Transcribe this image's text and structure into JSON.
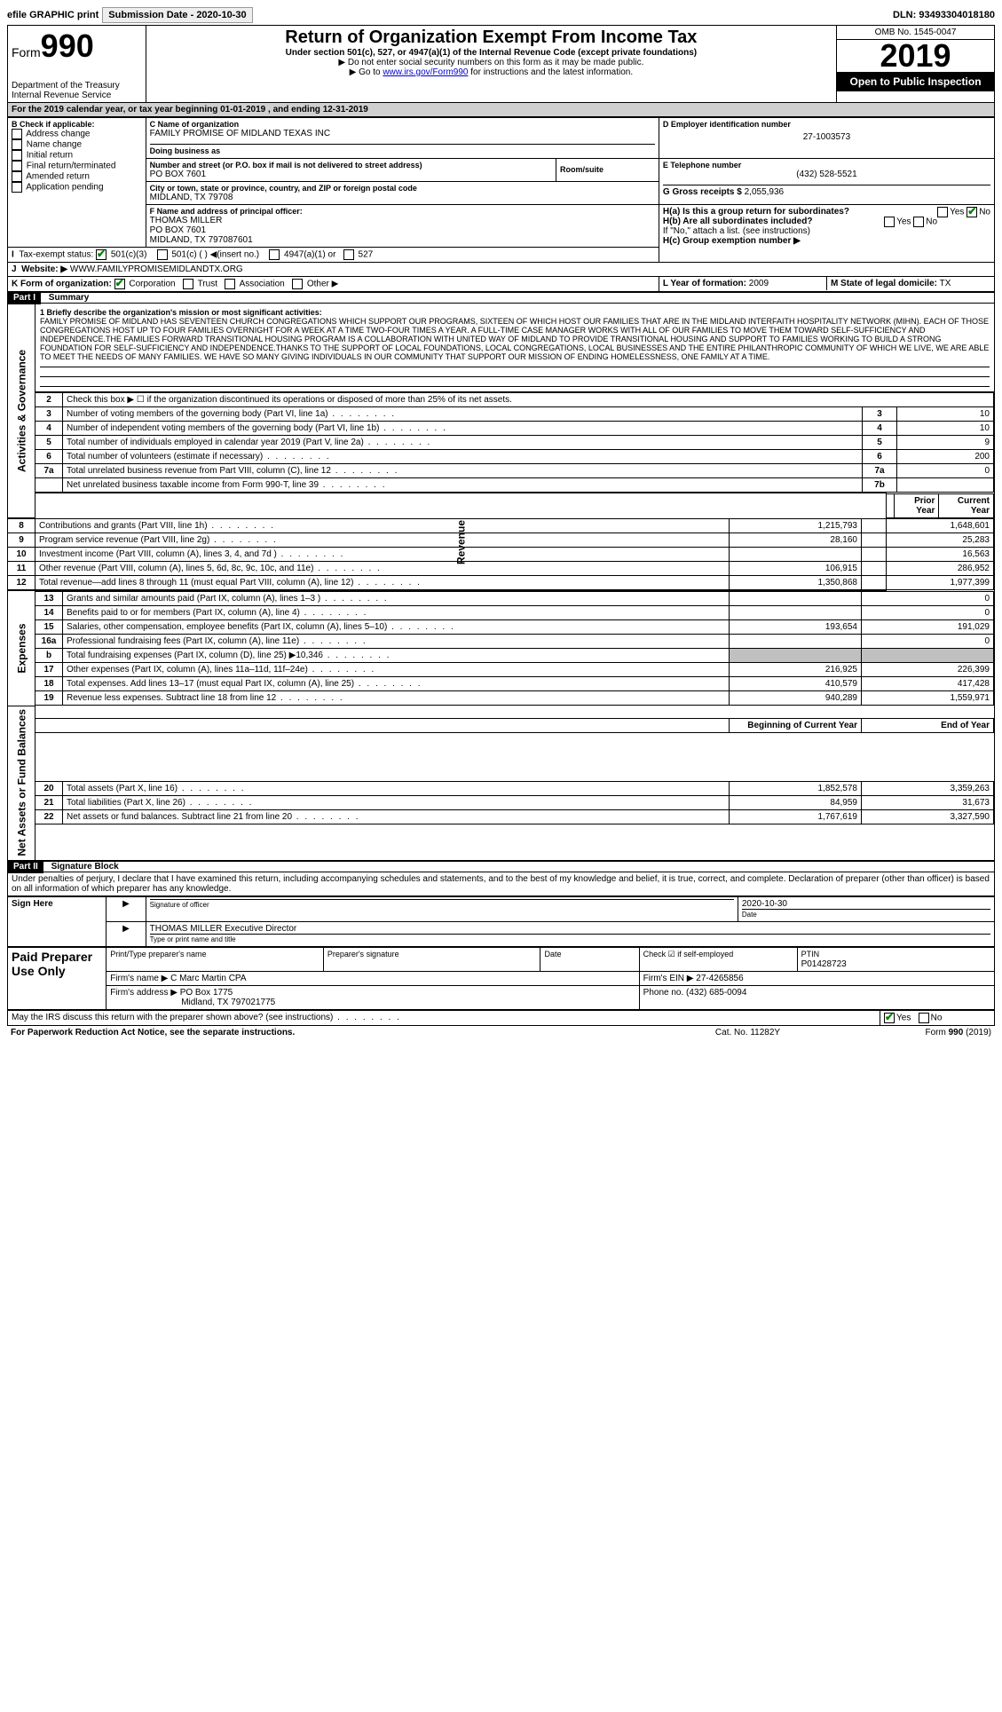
{
  "topbar": {
    "efile": "efile GRAPHIC print",
    "submission_label": "Submission Date - 2020-10-30",
    "dln": "DLN: 93493304018180"
  },
  "header": {
    "form_label": "Form",
    "form_num": "990",
    "dept": "Department of the Treasury\nInternal Revenue Service",
    "title": "Return of Organization Exempt From Income Tax",
    "subtitle": "Under section 501(c), 527, or 4947(a)(1) of the Internal Revenue Code (except private foundations)",
    "note1": "▶ Do not enter social security numbers on this form as it may be made public.",
    "note2": "▶ Go to www.irs.gov/Form990 for instructions and the latest information.",
    "omb": "OMB No. 1545-0047",
    "year": "2019",
    "open": "Open to Public Inspection"
  },
  "period": "For the 2019 calendar year, or tax year beginning 01-01-2019   , and ending 12-31-2019",
  "boxB": {
    "label": "B Check if applicable:",
    "items": [
      "Address change",
      "Name change",
      "Initial return",
      "Final return/terminated",
      "Amended return",
      "Application pending"
    ]
  },
  "boxC": {
    "name_label": "C Name of organization",
    "name": "FAMILY PROMISE OF MIDLAND TEXAS INC",
    "dba_label": "Doing business as",
    "addr_label": "Number and street (or P.O. box if mail is not delivered to street address)",
    "addr": "PO BOX 7601",
    "room_label": "Room/suite",
    "city_label": "City or town, state or province, country, and ZIP or foreign postal code",
    "city": "MIDLAND, TX  79708"
  },
  "boxD": {
    "label": "D Employer identification number",
    "val": "27-1003573"
  },
  "boxE": {
    "label": "E Telephone number",
    "val": "(432) 528-5521"
  },
  "boxG": {
    "label": "G Gross receipts $",
    "val": "2,055,936"
  },
  "boxF": {
    "label": "F  Name and address of principal officer:",
    "val": "THOMAS MILLER\nPO BOX 7601\nMIDLAND, TX  797087601"
  },
  "boxH": {
    "a": "H(a)  Is this a group return for subordinates?",
    "b": "H(b)  Are all subordinates included?",
    "bnote": "If \"No,\" attach a list. (see instructions)",
    "c": "H(c)  Group exemption number ▶"
  },
  "boxI": {
    "label": "Tax-exempt status:",
    "o1": "501(c)(3)",
    "o2": "501(c) (  ) ◀(insert no.)",
    "o3": "4947(a)(1) or",
    "o4": "527"
  },
  "boxJ": {
    "label": "Website: ▶",
    "val": "WWW.FAMILYPROMISEMIDLANDTX.ORG"
  },
  "boxK": {
    "label": "K Form of organization:",
    "o1": "Corporation",
    "o2": "Trust",
    "o3": "Association",
    "o4": "Other ▶"
  },
  "boxL": {
    "label": "L Year of formation:",
    "val": "2009"
  },
  "boxM": {
    "label": "M State of legal domicile:",
    "val": "TX"
  },
  "part1": {
    "hdr": "Part I",
    "title": "Summary"
  },
  "mission_label": "1  Briefly describe the organization's mission or most significant activities:",
  "mission": "FAMILY PROMISE OF MIDLAND HAS SEVENTEEN CHURCH CONGREGATIONS WHICH SUPPORT OUR PROGRAMS, SIXTEEN OF WHICH HOST OUR FAMILIES THAT ARE IN THE MIDLAND INTERFAITH HOSPITALITY NETWORK (MIHN). EACH OF THOSE CONGREGATIONS HOST UP TO FOUR FAMILIES OVERNIGHT FOR A WEEK AT A TIME TWO-FOUR TIMES A YEAR. A FULL-TIME CASE MANAGER WORKS WITH ALL OF OUR FAMILIES TO MOVE THEM TOWARD SELF-SUFFICIENCY AND INDEPENDENCE.THE FAMILIES FORWARD TRANSITIONAL HOUSING PROGRAM IS A COLLABORATION WITH UNITED WAY OF MIDLAND TO PROVIDE TRANSITIONAL HOUSING AND SUPPORT TO FAMILIES WORKING TO BUILD A STRONG FOUNDATION FOR SELF-SUFFICIENCY AND INDEPENDENCE.THANKS TO THE SUPPORT OF LOCAL FOUNDATIONS, LOCAL CONGREGATIONS, LOCAL BUSINESSES AND THE ENTIRE PHILANTHROPIC COMMUNITY OF WHICH WE LIVE, WE ARE ABLE TO MEET THE NEEDS OF MANY FAMILIES. WE HAVE SO MANY GIVING INDIVIDUALS IN OUR COMMUNITY THAT SUPPORT OUR MISSION OF ENDING HOMELESSNESS, ONE FAMILY AT A TIME.",
  "lines_gov": [
    {
      "n": "2",
      "t": "Check this box ▶ ☐ if the organization discontinued its operations or disposed of more than 25% of its net assets."
    },
    {
      "n": "3",
      "t": "Number of voting members of the governing body (Part VI, line 1a)",
      "box": "3",
      "v": "10"
    },
    {
      "n": "4",
      "t": "Number of independent voting members of the governing body (Part VI, line 1b)",
      "box": "4",
      "v": "10"
    },
    {
      "n": "5",
      "t": "Total number of individuals employed in calendar year 2019 (Part V, line 2a)",
      "box": "5",
      "v": "9"
    },
    {
      "n": "6",
      "t": "Total number of volunteers (estimate if necessary)",
      "box": "6",
      "v": "200"
    },
    {
      "n": "7a",
      "t": "Total unrelated business revenue from Part VIII, column (C), line 12",
      "box": "7a",
      "v": "0"
    },
    {
      "n": "",
      "t": "Net unrelated business taxable income from Form 990-T, line 39",
      "box": "7b",
      "v": ""
    }
  ],
  "col_hdr": {
    "prior": "Prior Year",
    "curr": "Current Year"
  },
  "rev": [
    {
      "n": "8",
      "t": "Contributions and grants (Part VIII, line 1h)",
      "p": "1,215,793",
      "c": "1,648,601"
    },
    {
      "n": "9",
      "t": "Program service revenue (Part VIII, line 2g)",
      "p": "28,160",
      "c": "25,283"
    },
    {
      "n": "10",
      "t": "Investment income (Part VIII, column (A), lines 3, 4, and 7d )",
      "p": "",
      "c": "16,563"
    },
    {
      "n": "11",
      "t": "Other revenue (Part VIII, column (A), lines 5, 6d, 8c, 9c, 10c, and 11e)",
      "p": "106,915",
      "c": "286,952"
    },
    {
      "n": "12",
      "t": "Total revenue—add lines 8 through 11 (must equal Part VIII, column (A), line 12)",
      "p": "1,350,868",
      "c": "1,977,399"
    }
  ],
  "exp": [
    {
      "n": "13",
      "t": "Grants and similar amounts paid (Part IX, column (A), lines 1–3 )",
      "p": "",
      "c": "0"
    },
    {
      "n": "14",
      "t": "Benefits paid to or for members (Part IX, column (A), line 4)",
      "p": "",
      "c": "0"
    },
    {
      "n": "15",
      "t": "Salaries, other compensation, employee benefits (Part IX, column (A), lines 5–10)",
      "p": "193,654",
      "c": "191,029"
    },
    {
      "n": "16a",
      "t": "Professional fundraising fees (Part IX, column (A), line 11e)",
      "p": "",
      "c": "0"
    },
    {
      "n": "b",
      "t": "Total fundraising expenses (Part IX, column (D), line 25) ▶10,346",
      "p": "SHADE",
      "c": "SHADE"
    },
    {
      "n": "17",
      "t": "Other expenses (Part IX, column (A), lines 11a–11d, 11f–24e)",
      "p": "216,925",
      "c": "226,399"
    },
    {
      "n": "18",
      "t": "Total expenses. Add lines 13–17 (must equal Part IX, column (A), line 25)",
      "p": "410,579",
      "c": "417,428"
    },
    {
      "n": "19",
      "t": "Revenue less expenses. Subtract line 18 from line 12",
      "p": "940,289",
      "c": "1,559,971"
    }
  ],
  "col_hdr2": {
    "prior": "Beginning of Current Year",
    "curr": "End of Year"
  },
  "net": [
    {
      "n": "20",
      "t": "Total assets (Part X, line 16)",
      "p": "1,852,578",
      "c": "3,359,263"
    },
    {
      "n": "21",
      "t": "Total liabilities (Part X, line 26)",
      "p": "84,959",
      "c": "31,673"
    },
    {
      "n": "22",
      "t": "Net assets or fund balances. Subtract line 21 from line 20",
      "p": "1,767,619",
      "c": "3,327,590"
    }
  ],
  "part2": {
    "hdr": "Part II",
    "title": "Signature Block"
  },
  "penalty": "Under penalties of perjury, I declare that I have examined this return, including accompanying schedules and statements, and to the best of my knowledge and belief, it is true, correct, and complete. Declaration of preparer (other than officer) is based on all information of which preparer has any knowledge.",
  "sign": {
    "here": "Sign Here",
    "sig_label": "Signature of officer",
    "date": "2020-10-30",
    "date_label": "Date",
    "name": "THOMAS MILLER  Executive Director",
    "name_label": "Type or print name and title"
  },
  "paid": {
    "here": "Paid Preparer Use Only",
    "c1": "Print/Type preparer's name",
    "c2": "Preparer's signature",
    "c3": "Date",
    "c4": "Check ☑ if self-employed",
    "c5": "PTIN",
    "ptin": "P01428723",
    "firm_name_label": "Firm's name     ▶",
    "firm_name": "C Marc Martin CPA",
    "firm_ein_label": "Firm's EIN ▶",
    "firm_ein": "27-4265856",
    "firm_addr_label": "Firm's address ▶",
    "firm_addr": "PO Box 1775",
    "firm_city": "Midland, TX  797021775",
    "phone_label": "Phone no.",
    "phone": "(432) 685-0094"
  },
  "discuss": "May the IRS discuss this return with the preparer shown above? (see instructions)",
  "footer": {
    "left": "For Paperwork Reduction Act Notice, see the separate instructions.",
    "mid": "Cat. No. 11282Y",
    "right": "Form 990 (2019)"
  },
  "side": {
    "gov": "Activities & Governance",
    "rev": "Revenue",
    "exp": "Expenses",
    "net": "Net Assets or Fund Balances"
  },
  "yesno": {
    "yes": "Yes",
    "no": "No"
  }
}
